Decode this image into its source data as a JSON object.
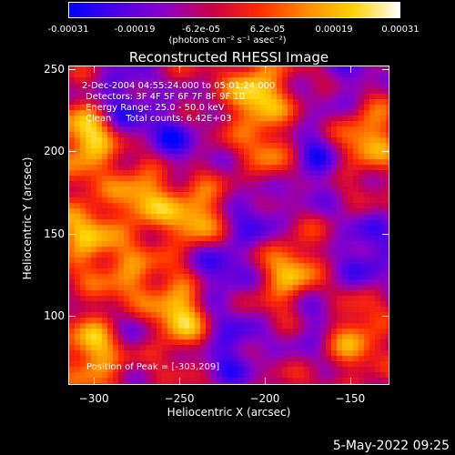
{
  "colorbar": {
    "ticks": [
      "-0.00031",
      "-0.00019",
      "-6.2e-05",
      "6.2e-05",
      "0.00019",
      "0.00031"
    ],
    "unit_line": "(photons cm⁻² s⁻¹ asec⁻²)",
    "colors": [
      "#0000ff",
      "#4b00e8",
      "#8a00c8",
      "#c8004a",
      "#ff2a00",
      "#ff8800",
      "#ffd200",
      "#ffffff"
    ]
  },
  "overlay": {
    "time_range": "2-Dec-2004 04:55:24.000 to 05:01:24.000",
    "detectors": "Detectors: 3F 4F 5F 6F 7F 8F 9F 10",
    "energy_range": "Energy Range: 25.0 - 50.0 keV",
    "method_counts": "Clean     Total counts: 6.42E+03",
    "peak": "Position of Peak = [-303,209]"
  },
  "timestamp": "5-May-2022 09:25",
  "chart_data": {
    "type": "heatmap",
    "title": "Reconstructed RHESSI Image",
    "xlabel": "Heliocentric X (arcsec)",
    "ylabel": "Heliocentric Y (arcsec)",
    "xlim": [
      -315,
      -127
    ],
    "ylim": [
      58,
      252
    ],
    "xticks": [
      -300,
      -250,
      -200,
      -150
    ],
    "yticks": [
      100,
      150,
      200,
      250
    ],
    "xtick_labels": [
      "−300",
      "−250",
      "−200",
      "−150"
    ],
    "ytick_labels": [
      "100",
      "150",
      "200",
      "250"
    ],
    "colorbar_range": [
      -0.00031,
      0.00031
    ],
    "peak_position": [
      -303,
      209
    ],
    "bright_regions": [
      {
        "x": -303,
        "y": 209,
        "level": 0.95
      },
      {
        "x": -250,
        "y": 103,
        "level": 0.9
      },
      {
        "x": -280,
        "y": 120,
        "level": 0.7
      },
      {
        "x": -270,
        "y": 175,
        "level": 0.75
      },
      {
        "x": -240,
        "y": 160,
        "level": 0.8
      },
      {
        "x": -205,
        "y": 235,
        "level": 0.85
      },
      {
        "x": -195,
        "y": 195,
        "level": 0.6
      },
      {
        "x": -185,
        "y": 125,
        "level": 0.75
      },
      {
        "x": -150,
        "y": 90,
        "level": 0.65
      },
      {
        "x": -140,
        "y": 210,
        "level": 0.7
      },
      {
        "x": -300,
        "y": 80,
        "level": 0.8
      },
      {
        "x": -305,
        "y": 150,
        "level": 0.7
      }
    ],
    "dark_regions": [
      {
        "x": -285,
        "y": 230,
        "level": -0.6
      },
      {
        "x": -255,
        "y": 205,
        "level": -0.55
      },
      {
        "x": -280,
        "y": 100,
        "level": -0.45
      },
      {
        "x": -230,
        "y": 130,
        "level": -0.6
      },
      {
        "x": -220,
        "y": 80,
        "level": -0.55
      },
      {
        "x": -175,
        "y": 195,
        "level": -0.6
      },
      {
        "x": -170,
        "y": 100,
        "level": -0.5
      },
      {
        "x": -140,
        "y": 140,
        "level": -0.55
      },
      {
        "x": -205,
        "y": 165,
        "level": -0.5
      },
      {
        "x": -150,
        "y": 245,
        "level": -0.4
      }
    ]
  }
}
